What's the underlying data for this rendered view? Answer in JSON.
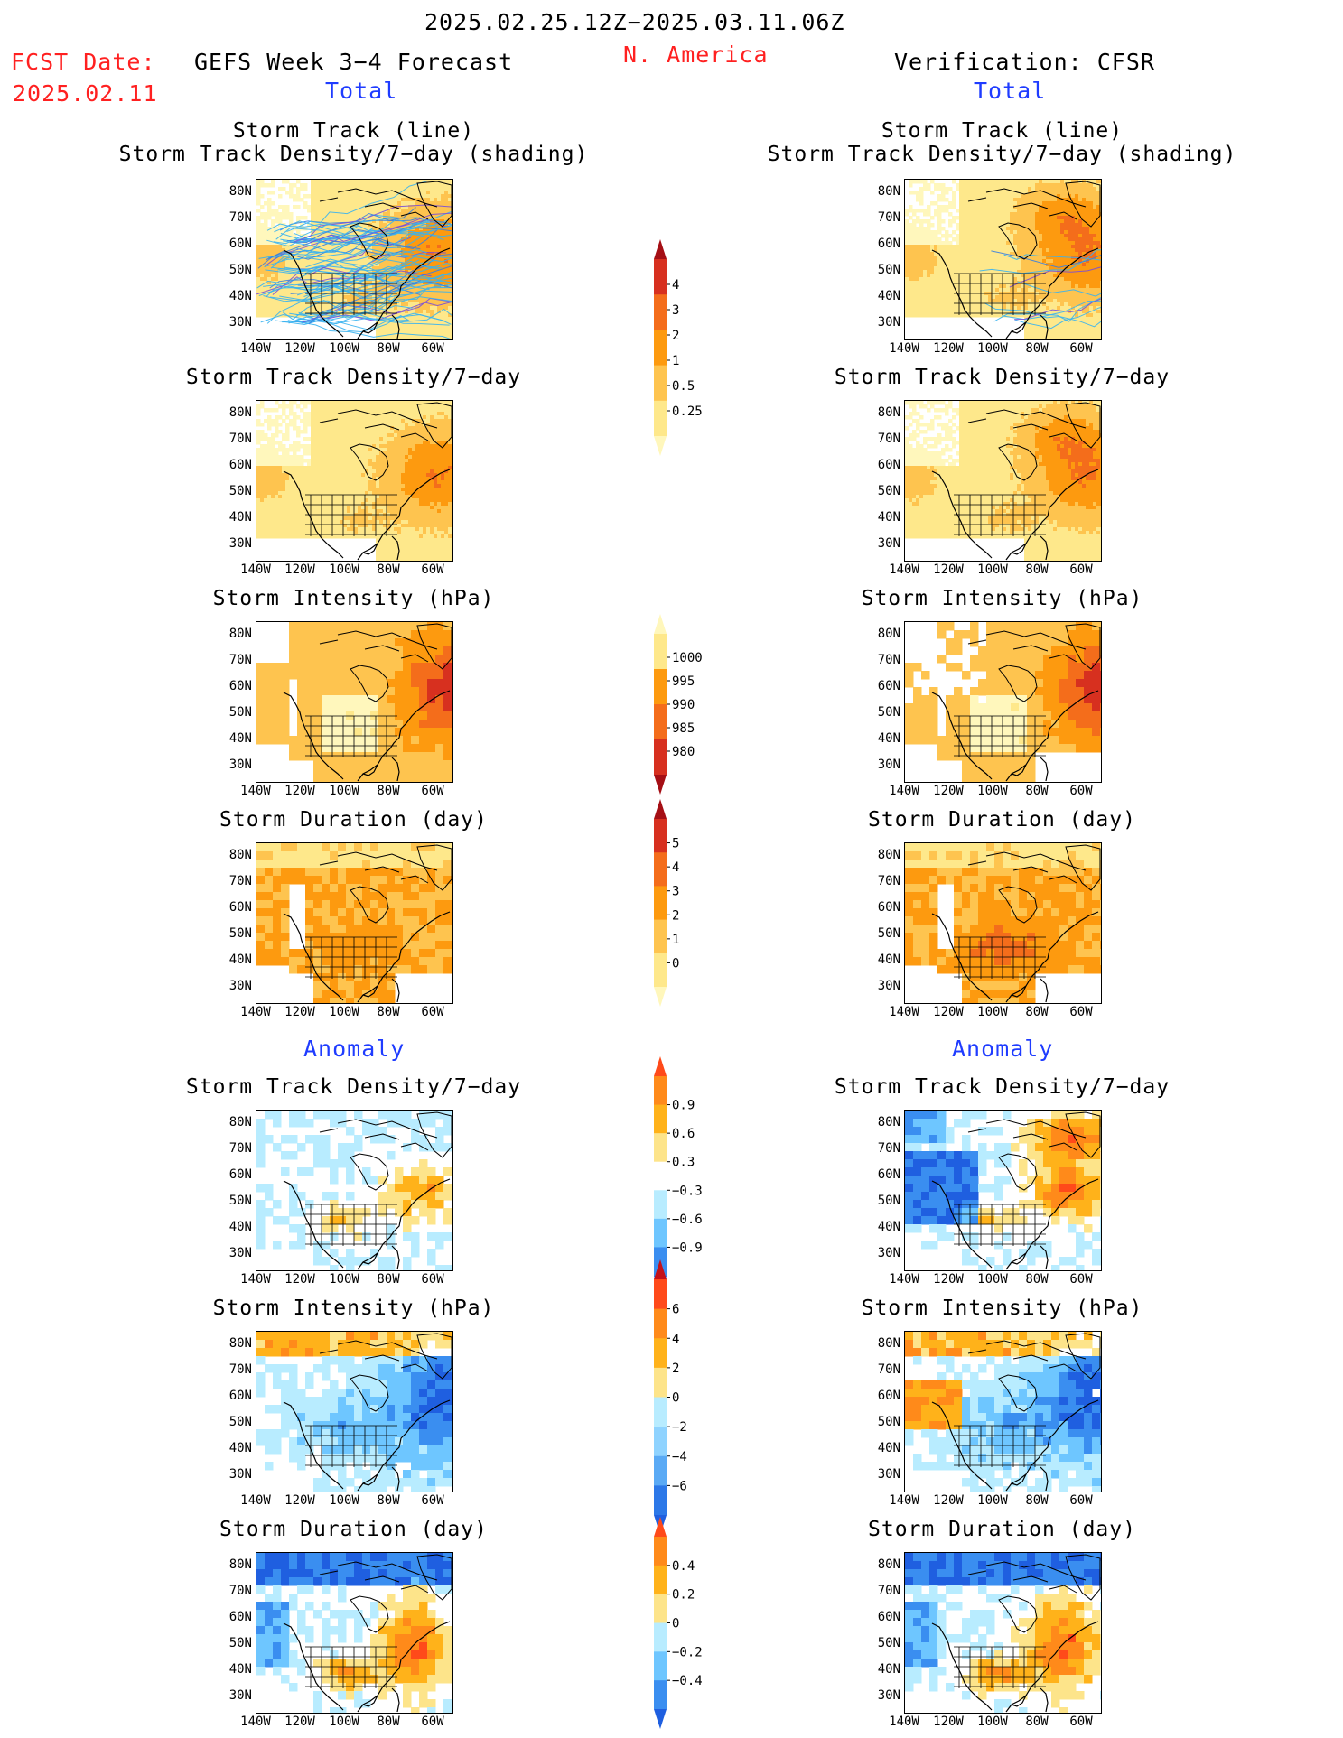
{
  "header": {
    "period": "2025.02.25.12Z−2025.03.11.06Z",
    "fcst_label": "FCST Date:",
    "fcst_date": "2025.02.11",
    "model": "GEFS Week 3−4 Forecast",
    "region": "N. America",
    "verification": "Verification: CFSR"
  },
  "sections": {
    "total_left": "Total",
    "total_right": "Total",
    "anomaly_left": "Anomaly",
    "anomaly_right": "Anomaly"
  },
  "panel_titles": {
    "track_line": "Storm Track (line)",
    "track_shading": "Storm Track Density/7−day (shading)",
    "density": "Storm Track Density/7−day",
    "intensity": "Storm Intensity (hPa)",
    "duration": "Storm Duration (day)"
  },
  "axes": {
    "lat_labels": [
      "80N",
      "70N",
      "60N",
      "50N",
      "40N",
      "30N"
    ],
    "lon_labels": [
      "140W",
      "120W",
      "100W",
      "80W",
      "60W"
    ]
  },
  "colorbars": {
    "density_total": {
      "labels": [
        "4",
        "3",
        "2",
        "1",
        "0.5",
        "0.25"
      ],
      "colors": [
        "#a50f15",
        "#d7301f",
        "#f46d1b",
        "#fd9a0f",
        "#fec44f",
        "#fee88b",
        "#fff7bc"
      ]
    },
    "intensity_total": {
      "labels": [
        "1000",
        "995",
        "990",
        "985",
        "980"
      ],
      "colors": [
        "#fff7bc",
        "#fee88b",
        "#fd9a0f",
        "#f46d1b",
        "#d7301f",
        "#a50f15"
      ]
    },
    "duration_total": {
      "labels": [
        "5",
        "4",
        "3",
        "2",
        "1",
        "0"
      ],
      "colors": [
        "#a50f15",
        "#d7301f",
        "#f46d1b",
        "#fd9a0f",
        "#fec44f",
        "#fee88b",
        "#fff7bc"
      ]
    },
    "density_anomaly": {
      "labels": [
        "0.9",
        "0.6",
        "0.3",
        "−0.3",
        "−0.6",
        "−0.9"
      ],
      "colors": [
        "#ff4a1a",
        "#ff8a1a",
        "#ffb21a",
        "#fde48a",
        "#ffffff",
        "#b8ecff",
        "#6ec6ff",
        "#3a8ef0",
        "#1f5fe0"
      ]
    },
    "intensity_anomaly": {
      "labels": [
        "6",
        "4",
        "2",
        "0",
        "−2",
        "−4",
        "−6"
      ],
      "colors": [
        "#c4121a",
        "#ff4a1a",
        "#ff8a1a",
        "#ffb21a",
        "#fde48a",
        "#b8ecff",
        "#8fd3ff",
        "#5aaaf5",
        "#2c78e8",
        "#1f5fe0"
      ]
    },
    "duration_anomaly": {
      "labels": [
        "0.4",
        "0.2",
        "0",
        "−0.2",
        "−0.4"
      ],
      "colors": [
        "#ff4a1a",
        "#ff8a1a",
        "#ffb21a",
        "#fde48a",
        "#b8ecff",
        "#6ec6ff",
        "#3a8ef0",
        "#1f5fe0"
      ]
    }
  }
}
